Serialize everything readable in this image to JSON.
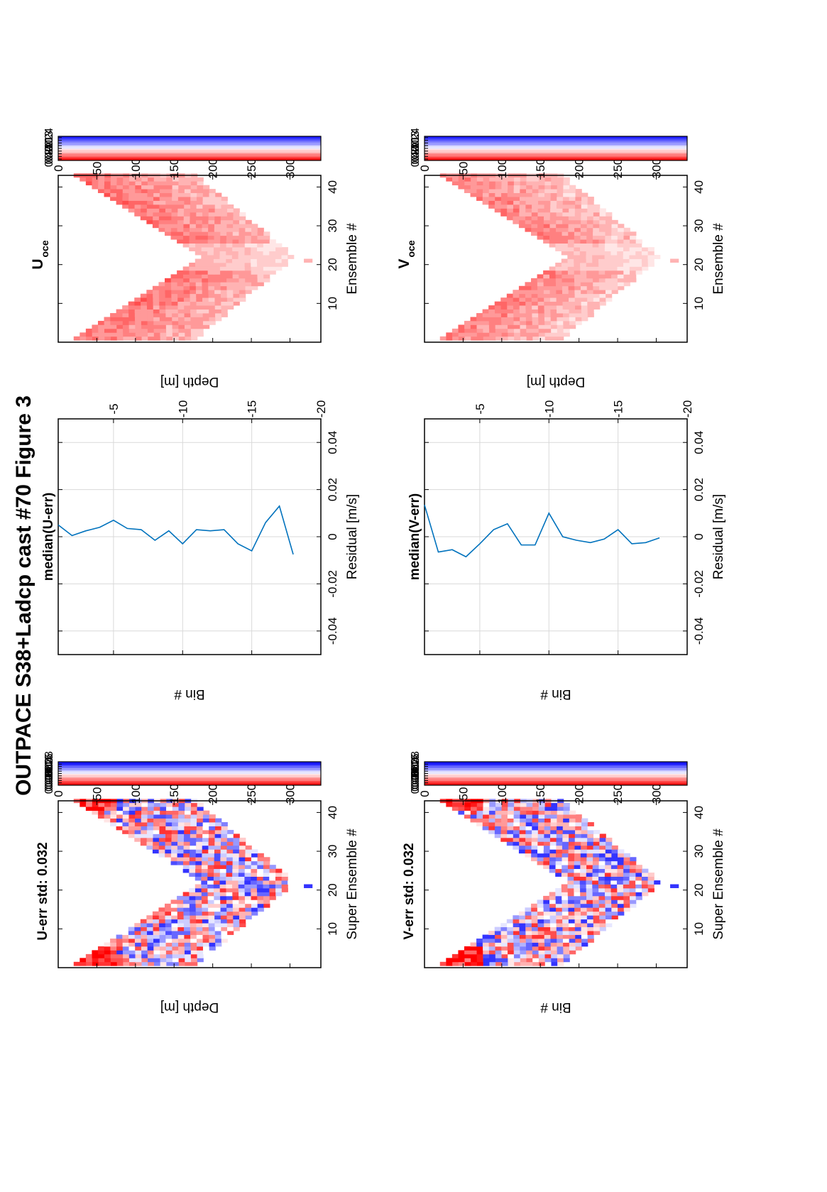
{
  "figure": {
    "title": "OUTPACE S38+Ladcp cast #70  Figure 3"
  },
  "panels": {
    "u_err": {
      "title": "U-err std: 0.032",
      "ylabel": "Depth [m]",
      "xlabel": "Super Ensemble #"
    },
    "v_err": {
      "title": "V-err std: 0.032",
      "ylabel": "Bin #",
      "xlabel": "Super Ensemble #"
    },
    "u_med": {
      "title": "median(U-err)",
      "ylabel": "Bin #",
      "xlabel": "Residual [m/s]"
    },
    "v_med": {
      "title": "median(V-err)",
      "ylabel": "Bin #",
      "xlabel": "Residual [m/s]"
    },
    "u_oce": {
      "title_main": "U",
      "title_sub": "oce",
      "ylabel": "Depth [m]",
      "xlabel": "Ensemble #"
    },
    "v_oce": {
      "title_main": "V",
      "title_sub": "oce",
      "ylabel": "Depth [m]",
      "xlabel": "Ensemble #"
    }
  },
  "chart_data": [
    {
      "id": "u_err",
      "type": "heatmap",
      "title": "U-err std: 0.032",
      "xlabel": "Super Ensemble #",
      "ylabel": "Depth [m]",
      "xlim": [
        1,
        43
      ],
      "xticks": [
        10,
        20,
        30,
        40
      ],
      "ylim": [
        0,
        340
      ],
      "yticks": [
        0,
        50,
        100,
        150,
        200,
        250,
        300
      ],
      "clim": [
        -0.1,
        0.1
      ],
      "colorbar_ticks": [
        "0.08",
        "0.06",
        "0.04",
        "0.02",
        "0",
        "-0.02",
        "-0.04",
        "-0.06",
        "-0.08"
      ],
      "colormap": {
        "negative": "#0000ff",
        "zero": "#ffffff",
        "positive": "#ff0000"
      },
      "coverage": "V-shaped band: top ~20 m at ensembles 1 and 43, deepest ~300 m near ensemble 22; band ~100-150 m thick"
    },
    {
      "id": "v_err",
      "type": "heatmap",
      "title": "V-err std: 0.032",
      "xlabel": "Super Ensemble #",
      "ylabel": "Bin #",
      "xlim": [
        1,
        43
      ],
      "xticks": [
        10,
        20,
        30,
        40
      ],
      "ylim": [
        0,
        340
      ],
      "yticks": [
        0,
        50,
        100,
        150,
        200,
        250,
        300
      ],
      "clim": [
        -0.1,
        0.1
      ],
      "colorbar_ticks": [
        "0.08",
        "0.06",
        "0.04",
        "0.02",
        "0",
        "-0.02",
        "-0.04",
        "-0.06",
        "-0.08"
      ],
      "colormap": {
        "negative": "#0000ff",
        "zero": "#ffffff",
        "positive": "#ff0000"
      }
    },
    {
      "id": "u_med",
      "type": "line",
      "title": "median(U-err)",
      "xlabel": "Residual [m/s]",
      "ylabel": "Bin #",
      "xlim": [
        -0.05,
        0.05
      ],
      "xticks": [
        -0.04,
        -0.02,
        0,
        0.02,
        0.04
      ],
      "ylim": [
        -20,
        -1
      ],
      "yticks": [
        -5,
        -10,
        -15,
        -20
      ],
      "grid": true,
      "color": "#0072bd",
      "points": [
        {
          "bin": -1,
          "residual": 0.005
        },
        {
          "bin": -2,
          "residual": 0.0005
        },
        {
          "bin": -3,
          "residual": 0.0025
        },
        {
          "bin": -4,
          "residual": 0.004
        },
        {
          "bin": -5,
          "residual": 0.007
        },
        {
          "bin": -6,
          "residual": 0.0035
        },
        {
          "bin": -7,
          "residual": 0.003
        },
        {
          "bin": -8,
          "residual": -0.0015
        },
        {
          "bin": -9,
          "residual": 0.0025
        },
        {
          "bin": -10,
          "residual": -0.003
        },
        {
          "bin": -11,
          "residual": 0.003
        },
        {
          "bin": -12,
          "residual": 0.0025
        },
        {
          "bin": -13,
          "residual": 0.003
        },
        {
          "bin": -14,
          "residual": -0.003
        },
        {
          "bin": -15,
          "residual": -0.006
        },
        {
          "bin": -16,
          "residual": 0.006
        },
        {
          "bin": -17,
          "residual": 0.013
        },
        {
          "bin": -18,
          "residual": -0.0075
        }
      ]
    },
    {
      "id": "v_med",
      "type": "line",
      "title": "median(V-err)",
      "xlabel": "Residual [m/s]",
      "ylabel": "Bin #",
      "xlim": [
        -0.05,
        0.05
      ],
      "xticks": [
        -0.04,
        -0.02,
        0,
        0.02,
        0.04
      ],
      "ylim": [
        -20,
        -1
      ],
      "yticks": [
        -5,
        -10,
        -15,
        -20
      ],
      "grid": true,
      "color": "#0072bd",
      "points": [
        {
          "bin": -1,
          "residual": 0.0135
        },
        {
          "bin": -2,
          "residual": -0.0065
        },
        {
          "bin": -3,
          "residual": -0.0055
        },
        {
          "bin": -4,
          "residual": -0.0085
        },
        {
          "bin": -5,
          "residual": -0.003
        },
        {
          "bin": -6,
          "residual": 0.003
        },
        {
          "bin": -7,
          "residual": 0.0055
        },
        {
          "bin": -8,
          "residual": -0.0035
        },
        {
          "bin": -9,
          "residual": -0.0035
        },
        {
          "bin": -10,
          "residual": 0.01
        },
        {
          "bin": -11,
          "residual": 0.0
        },
        {
          "bin": -12,
          "residual": -0.0015
        },
        {
          "bin": -13,
          "residual": -0.0025
        },
        {
          "bin": -14,
          "residual": -0.001
        },
        {
          "bin": -15,
          "residual": 0.003
        },
        {
          "bin": -16,
          "residual": -0.003
        },
        {
          "bin": -17,
          "residual": -0.0025
        },
        {
          "bin": -18,
          "residual": -0.0005
        }
      ]
    },
    {
      "id": "u_oce",
      "type": "heatmap",
      "title": "Uoce",
      "xlabel": "Ensemble #",
      "ylabel": "Depth [m]",
      "xlim": [
        1,
        43
      ],
      "xticks": [
        10,
        20,
        30,
        40
      ],
      "ylim": [
        0,
        340
      ],
      "yticks": [
        0,
        50,
        100,
        150,
        200,
        250,
        300
      ],
      "clim": [
        -0.45,
        0.45
      ],
      "colorbar_ticks": [
        "0.4",
        "0.3",
        "0.2",
        "0.1",
        "0",
        "-0.1",
        "-0.2",
        "-0.3",
        "-0.4"
      ],
      "colormap": {
        "negative": "#0000ff",
        "zero": "#ffffff",
        "positive": "#ff0000"
      },
      "pattern": "mostly positive 0.1-0.3, weaker near V apex"
    },
    {
      "id": "v_oce",
      "type": "heatmap",
      "title": "Voce",
      "xlabel": "Ensemble #",
      "ylabel": "Depth [m]",
      "xlim": [
        1,
        43
      ],
      "xticks": [
        10,
        20,
        30,
        40
      ],
      "ylim": [
        0,
        340
      ],
      "yticks": [
        0,
        50,
        100,
        150,
        200,
        250,
        300
      ],
      "clim": [
        -0.45,
        0.45
      ],
      "colorbar_ticks": [
        "0.4",
        "0.3",
        "0.2",
        "0.1",
        "0",
        "-0.1",
        "-0.2",
        "-0.3",
        "-0.4"
      ],
      "colormap": {
        "negative": "#0000ff",
        "zero": "#ffffff",
        "positive": "#ff0000"
      },
      "pattern": "strongest positive near surface at ends, weaker at depth"
    }
  ]
}
